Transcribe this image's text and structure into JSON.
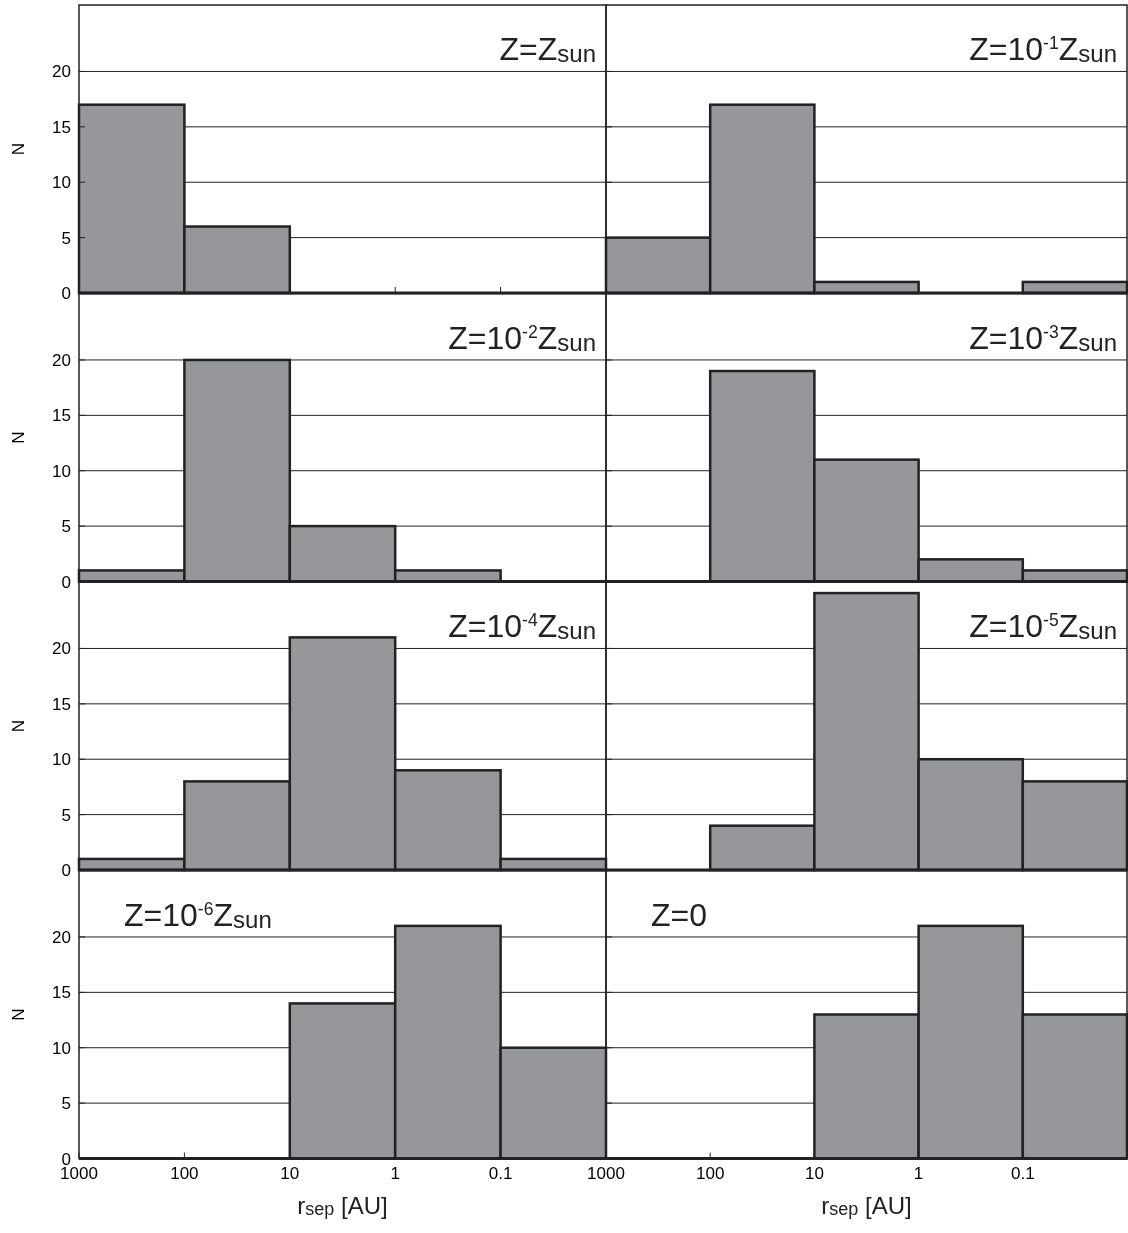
{
  "chart_data": [
    {
      "type": "histogram",
      "title": "Z=Z$_{sun}$",
      "ylabel": "N",
      "bins": [
        1000,
        100,
        10,
        1,
        0.1,
        0.01
      ],
      "values": [
        17,
        6,
        0,
        0,
        0
      ],
      "color": "#96979b",
      "log": "x",
      "xlim": [
        1000,
        0.01
      ],
      "xticks": [
        1000,
        100,
        10,
        1,
        0.1
      ],
      "ylim": [
        0,
        26
      ],
      "yticks": [
        0,
        5,
        10,
        15,
        20
      ],
      "grid": "y",
      "tick_labels": "y"
    },
    {
      "type": "histogram",
      "title": "Z=10$^{-1}$Z$_{sun}$",
      "bins": [
        1000,
        100,
        10,
        1,
        0.1,
        0.01
      ],
      "values": [
        5,
        17,
        1,
        0,
        1
      ],
      "color": "#96979b",
      "log": "x",
      "xlim": [
        1000,
        0.01
      ],
      "xticks": [
        1000,
        100,
        10,
        1,
        0.1
      ],
      "ylim": [
        0,
        26
      ],
      "yticks": [
        0,
        5,
        10,
        15,
        20
      ],
      "grid": "y",
      "tick_labels": false
    },
    {
      "type": "histogram",
      "title": "Z=10$^{-2}$Z$_{sun}$",
      "ylabel": "N",
      "bins": [
        1000,
        100,
        10,
        1,
        0.1,
        0.01
      ],
      "values": [
        1,
        20,
        5,
        1,
        0
      ],
      "color": "#96979b",
      "log": "x",
      "xlim": [
        1000,
        0.01
      ],
      "xticks": [
        1000,
        100,
        10,
        1,
        0.1
      ],
      "ylim": [
        0,
        26
      ],
      "yticks": [
        0,
        5,
        10,
        15,
        20
      ],
      "grid": "y",
      "tick_labels": "y"
    },
    {
      "type": "histogram",
      "title": "Z=10$^{-3}$Z$_{sun}$",
      "bins": [
        1000,
        100,
        10,
        1,
        0.1,
        0.01
      ],
      "values": [
        0,
        19,
        11,
        2,
        1
      ],
      "color": "#96979b",
      "log": "x",
      "xlim": [
        1000,
        0.01
      ],
      "xticks": [
        1000,
        100,
        10,
        1,
        0.1
      ],
      "ylim": [
        0,
        26
      ],
      "yticks": [
        0,
        5,
        10,
        15,
        20
      ],
      "grid": "y",
      "tick_labels": false
    },
    {
      "type": "histogram",
      "title": "Z=10$^{-4}$Z$_{sun}$",
      "ylabel": "N",
      "bins": [
        1000,
        100,
        10,
        1,
        0.1,
        0.01
      ],
      "values": [
        1,
        8,
        21,
        9,
        1
      ],
      "color": "#96979b",
      "log": "x",
      "xlim": [
        1000,
        0.01
      ],
      "xticks": [
        1000,
        100,
        10,
        1,
        0.1
      ],
      "ylim": [
        0,
        26
      ],
      "yticks": [
        0,
        5,
        10,
        15,
        20
      ],
      "grid": "y",
      "tick_labels": "y"
    },
    {
      "type": "histogram",
      "title": "Z=10$^{-5}$Z$_{sun}$",
      "bins": [
        1000,
        100,
        10,
        1,
        0.1,
        0.01
      ],
      "values": [
        0,
        4,
        25,
        10,
        8
      ],
      "color": "#96979b",
      "log": "x",
      "xlim": [
        1000,
        0.01
      ],
      "xticks": [
        1000,
        100,
        10,
        1,
        0.1
      ],
      "ylim": [
        0,
        26
      ],
      "yticks": [
        0,
        5,
        10,
        15,
        20
      ],
      "grid": "y",
      "tick_labels": false
    },
    {
      "type": "histogram",
      "title": "Z=10$^{-6}$Z$_{sun}$",
      "ylabel": "N",
      "xlabel": "r$_{sep}$ [AU]",
      "bins": [
        1000,
        100,
        10,
        1,
        0.1,
        0.01
      ],
      "values": [
        0,
        0,
        14,
        21,
        10
      ],
      "color": "#96979b",
      "log": "x",
      "xlim": [
        1000,
        0.01
      ],
      "xticks": [
        1000,
        100,
        10,
        1,
        0.1
      ],
      "ylim": [
        0,
        26
      ],
      "yticks": [
        0,
        5,
        10,
        15,
        20
      ],
      "grid": "y"
    },
    {
      "type": "histogram",
      "title": "Z=0",
      "xlabel": "r$_{sep}$ [AU]",
      "bins": [
        1000,
        100,
        10,
        1,
        0.1,
        0.01
      ],
      "values": [
        0,
        0,
        13,
        21,
        13
      ],
      "color": "#96979b",
      "log": "x",
      "xlim": [
        1000,
        0.01
      ],
      "xticks": [
        1000,
        100,
        10,
        1,
        0.1
      ],
      "ylim": [
        0,
        26
      ],
      "yticks": [
        0,
        5,
        10,
        15,
        20
      ],
      "grid": "y",
      "tick_labels": "x"
    }
  ]
}
